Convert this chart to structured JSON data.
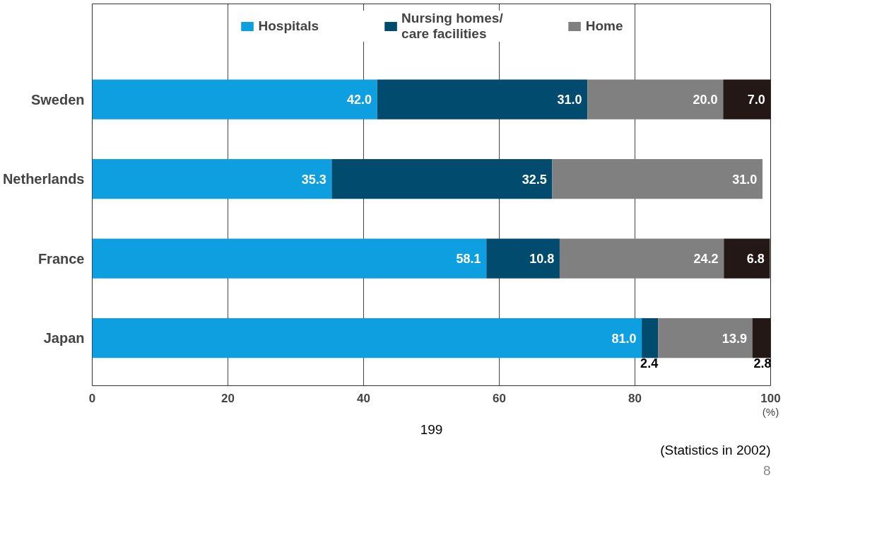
{
  "chart_data": {
    "type": "bar",
    "orientation": "horizontal",
    "stacked": true,
    "categories": [
      "Sweden",
      "Netherlands",
      "France",
      "Japan"
    ],
    "xlabel": "(%)",
    "series": [
      {
        "name": "Hospitals",
        "color": "#0e9fe0",
        "values": [
          42.0,
          35.3,
          58.1,
          81.0
        ],
        "value_labels": [
          "42.0",
          "35.3",
          "58.1",
          "81.0"
        ]
      },
      {
        "name": "Nursing homes/\ncare facilities",
        "color": "#004b6e",
        "values": [
          31.0,
          32.5,
          10.8,
          2.4
        ],
        "value_labels": [
          "31.0",
          "32.5",
          "10.8",
          "2.4"
        ]
      },
      {
        "name": "Home",
        "color": "#808080",
        "values": [
          20.0,
          31.0,
          24.2,
          13.9
        ],
        "value_labels": [
          "20.0",
          "31.0",
          "24.2",
          "13.9"
        ]
      },
      {
        "color": "#231815",
        "values": [
          7.0,
          null,
          6.8,
          2.8
        ],
        "value_labels": [
          "7.0",
          null,
          "6.8",
          "2.8"
        ]
      }
    ],
    "xlim": [
      0,
      100
    ],
    "xticks": [
      0,
      20,
      40,
      60,
      80,
      100
    ],
    "grid": "x",
    "legend": "top",
    "annotations": [
      "199",
      "(Statistics in 2002)",
      "8"
    ]
  }
}
